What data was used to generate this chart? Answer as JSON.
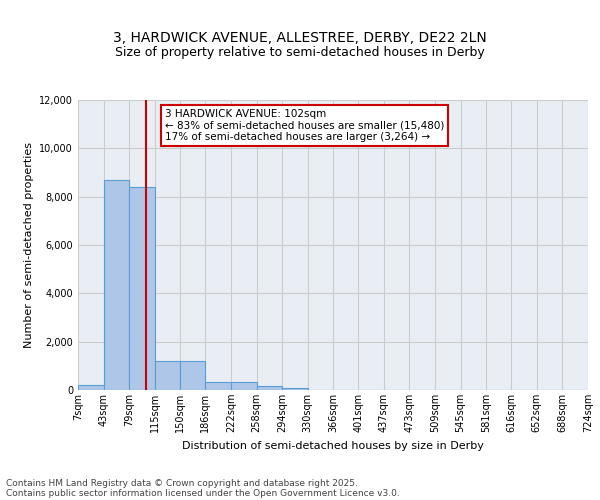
{
  "title_line1": "3, HARDWICK AVENUE, ALLESTREE, DERBY, DE22 2LN",
  "title_line2": "Size of property relative to semi-detached houses in Derby",
  "xlabel": "Distribution of semi-detached houses by size in Derby",
  "ylabel": "Number of semi-detached properties",
  "bin_edges": [
    7,
    43,
    79,
    115,
    150,
    186,
    222,
    258,
    294,
    330,
    366,
    401,
    437,
    473,
    509,
    545,
    581,
    616,
    652,
    688,
    724
  ],
  "bar_heights": [
    200,
    8700,
    8400,
    1200,
    1200,
    350,
    330,
    150,
    80,
    0,
    0,
    0,
    0,
    0,
    0,
    0,
    0,
    0,
    0,
    0
  ],
  "bar_color": "#aec6e8",
  "bar_edge_color": "#5a9fd4",
  "bar_edge_width": 0.8,
  "property_size": 102,
  "red_line_color": "#cc0000",
  "annotation_text": "3 HARDWICK AVENUE: 102sqm\n← 83% of semi-detached houses are smaller (15,480)\n17% of semi-detached houses are larger (3,264) →",
  "annotation_box_color": "#ffffff",
  "annotation_box_edge": "#cc0000",
  "ylim": [
    0,
    12000
  ],
  "yticks": [
    0,
    2000,
    4000,
    6000,
    8000,
    10000,
    12000
  ],
  "grid_color": "#cccccc",
  "bg_color": "#e8eef4",
  "footer_line1": "Contains HM Land Registry data © Crown copyright and database right 2025.",
  "footer_line2": "Contains public sector information licensed under the Open Government Licence v3.0.",
  "title_fontsize": 10,
  "subtitle_fontsize": 9,
  "tick_fontsize": 7,
  "ylabel_fontsize": 8,
  "xlabel_fontsize": 8,
  "annotation_fontsize": 7.5,
  "footer_fontsize": 6.5
}
